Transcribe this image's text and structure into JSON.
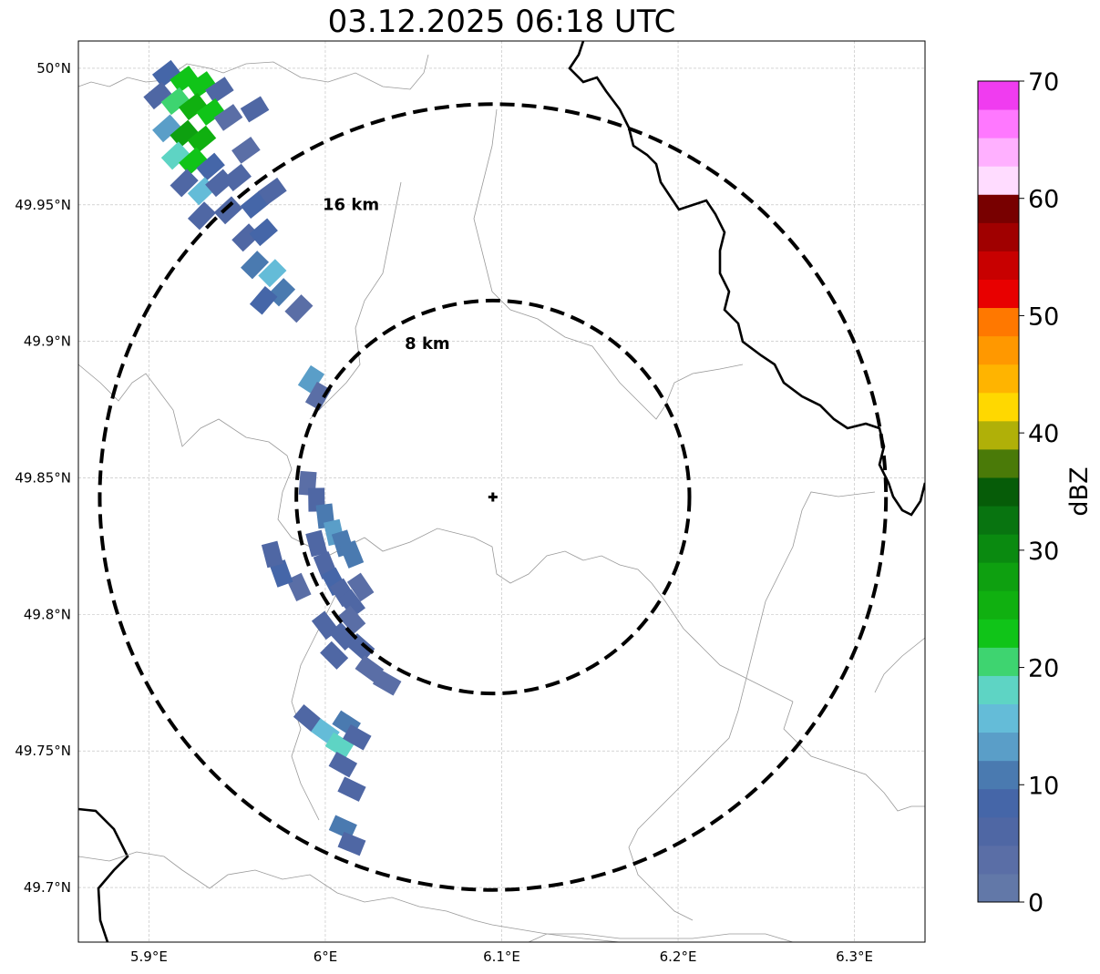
{
  "title": "03.12.2025 06:18 UTC",
  "map": {
    "lon_range": [
      5.86,
      6.34
    ],
    "lat_range": [
      49.68,
      50.01
    ],
    "radar_center": {
      "lon": 6.095,
      "lat": 49.843
    },
    "x_ticks": [
      {
        "value": 5.9,
        "label": "5.9°E"
      },
      {
        "value": 6.0,
        "label": "6°E"
      },
      {
        "value": 6.1,
        "label": "6.1°E"
      },
      {
        "value": 6.2,
        "label": "6.2°E"
      },
      {
        "value": 6.3,
        "label": "6.3°E"
      }
    ],
    "y_ticks": [
      {
        "value": 50.0,
        "label": "50°N"
      },
      {
        "value": 49.95,
        "label": "49.95°N"
      },
      {
        "value": 49.9,
        "label": "49.9°N"
      },
      {
        "value": 49.85,
        "label": "49.85°N"
      },
      {
        "value": 49.8,
        "label": "49.8°N"
      },
      {
        "value": 49.75,
        "label": "49.75°N"
      },
      {
        "value": 49.7,
        "label": "49.7°N"
      }
    ],
    "grid": true,
    "range_rings": [
      {
        "km": 8,
        "label": "8 km"
      },
      {
        "km": 16,
        "label": "16 km"
      }
    ]
  },
  "colorbar": {
    "label": "dBZ",
    "min": 0,
    "max": 70,
    "ticks": [
      "0",
      "10",
      "20",
      "30",
      "40",
      "50",
      "60",
      "70"
    ],
    "colors": [
      "#6278a8",
      "#5a6ea6",
      "#4f67a4",
      "#4566a8",
      "#4a7ab0",
      "#5a9ec8",
      "#64bcd8",
      "#5ed4c4",
      "#3ed470",
      "#10c418",
      "#10b010",
      "#0ea010",
      "#0a8a10",
      "#087410",
      "#065c08",
      "#4a7a08",
      "#b0b008",
      "#ffd800",
      "#ffb400",
      "#ff9800",
      "#ff7800",
      "#e80000",
      "#c80000",
      "#a00000",
      "#780000",
      "#ffdcff",
      "#ffb0ff",
      "#ff78ff",
      "#f03cf0"
    ]
  },
  "reflectivity_cells": [
    {
      "lon": 5.91,
      "lat": 49.998,
      "dbz": 8
    },
    {
      "lon": 5.92,
      "lat": 49.996,
      "dbz": 22
    },
    {
      "lon": 5.93,
      "lat": 49.994,
      "dbz": 24
    },
    {
      "lon": 5.94,
      "lat": 49.992,
      "dbz": 6
    },
    {
      "lon": 5.905,
      "lat": 49.99,
      "dbz": 5
    },
    {
      "lon": 5.915,
      "lat": 49.988,
      "dbz": 20
    },
    {
      "lon": 5.925,
      "lat": 49.986,
      "dbz": 26
    },
    {
      "lon": 5.935,
      "lat": 49.984,
      "dbz": 22
    },
    {
      "lon": 5.945,
      "lat": 49.982,
      "dbz": 4
    },
    {
      "lon": 5.91,
      "lat": 49.978,
      "dbz": 14
    },
    {
      "lon": 5.92,
      "lat": 49.976,
      "dbz": 28
    },
    {
      "lon": 5.93,
      "lat": 49.974,
      "dbz": 25
    },
    {
      "lon": 5.96,
      "lat": 49.985,
      "dbz": 5
    },
    {
      "lon": 5.915,
      "lat": 49.968,
      "dbz": 18
    },
    {
      "lon": 5.925,
      "lat": 49.966,
      "dbz": 22
    },
    {
      "lon": 5.935,
      "lat": 49.964,
      "dbz": 8
    },
    {
      "lon": 5.955,
      "lat": 49.97,
      "dbz": 4
    },
    {
      "lon": 5.92,
      "lat": 49.958,
      "dbz": 6
    },
    {
      "lon": 5.93,
      "lat": 49.955,
      "dbz": 16
    },
    {
      "lon": 5.94,
      "lat": 49.958,
      "dbz": 5
    },
    {
      "lon": 5.95,
      "lat": 49.96,
      "dbz": 6
    },
    {
      "lon": 5.93,
      "lat": 49.946,
      "dbz": 5
    },
    {
      "lon": 5.945,
      "lat": 49.948,
      "dbz": 7
    },
    {
      "lon": 5.96,
      "lat": 49.95,
      "dbz": 8
    },
    {
      "lon": 5.97,
      "lat": 49.955,
      "dbz": 6
    },
    {
      "lon": 5.955,
      "lat": 49.938,
      "dbz": 5
    },
    {
      "lon": 5.965,
      "lat": 49.94,
      "dbz": 9
    },
    {
      "lon": 5.96,
      "lat": 49.928,
      "dbz": 11
    },
    {
      "lon": 5.97,
      "lat": 49.925,
      "dbz": 15
    },
    {
      "lon": 5.975,
      "lat": 49.918,
      "dbz": 10
    },
    {
      "lon": 5.965,
      "lat": 49.915,
      "dbz": 8
    },
    {
      "lon": 5.985,
      "lat": 49.912,
      "dbz": 4
    },
    {
      "lon": 5.992,
      "lat": 49.886,
      "dbz": 13
    },
    {
      "lon": 5.996,
      "lat": 49.88,
      "dbz": 4
    },
    {
      "lon": 5.99,
      "lat": 49.848,
      "dbz": 4
    },
    {
      "lon": 5.995,
      "lat": 49.842,
      "dbz": 5
    },
    {
      "lon": 6.0,
      "lat": 49.836,
      "dbz": 11
    },
    {
      "lon": 6.005,
      "lat": 49.83,
      "dbz": 13
    },
    {
      "lon": 6.01,
      "lat": 49.826,
      "dbz": 12
    },
    {
      "lon": 6.015,
      "lat": 49.822,
      "dbz": 10
    },
    {
      "lon": 5.995,
      "lat": 49.826,
      "dbz": 6
    },
    {
      "lon": 6.0,
      "lat": 49.818,
      "dbz": 5
    },
    {
      "lon": 6.005,
      "lat": 49.812,
      "dbz": 8
    },
    {
      "lon": 6.01,
      "lat": 49.808,
      "dbz": 6
    },
    {
      "lon": 6.015,
      "lat": 49.804,
      "dbz": 5
    },
    {
      "lon": 6.02,
      "lat": 49.81,
      "dbz": 4
    },
    {
      "lon": 5.985,
      "lat": 49.81,
      "dbz": 4
    },
    {
      "lon": 5.975,
      "lat": 49.815,
      "dbz": 9
    },
    {
      "lon": 5.97,
      "lat": 49.822,
      "dbz": 5
    },
    {
      "lon": 6.0,
      "lat": 49.796,
      "dbz": 6
    },
    {
      "lon": 6.01,
      "lat": 49.792,
      "dbz": 5
    },
    {
      "lon": 6.02,
      "lat": 49.788,
      "dbz": 7
    },
    {
      "lon": 6.015,
      "lat": 49.798,
      "dbz": 4
    },
    {
      "lon": 6.025,
      "lat": 49.78,
      "dbz": 4
    },
    {
      "lon": 6.005,
      "lat": 49.785,
      "dbz": 5
    },
    {
      "lon": 6.035,
      "lat": 49.775,
      "dbz": 4
    },
    {
      "lon": 5.99,
      "lat": 49.762,
      "dbz": 5
    },
    {
      "lon": 6.0,
      "lat": 49.757,
      "dbz": 16
    },
    {
      "lon": 6.008,
      "lat": 49.752,
      "dbz": 17
    },
    {
      "lon": 6.012,
      "lat": 49.76,
      "dbz": 12
    },
    {
      "lon": 6.018,
      "lat": 49.755,
      "dbz": 7
    },
    {
      "lon": 6.01,
      "lat": 49.745,
      "dbz": 6
    },
    {
      "lon": 6.015,
      "lat": 49.736,
      "dbz": 5
    },
    {
      "lon": 6.01,
      "lat": 49.722,
      "dbz": 11
    },
    {
      "lon": 6.015,
      "lat": 49.716,
      "dbz": 7
    }
  ]
}
